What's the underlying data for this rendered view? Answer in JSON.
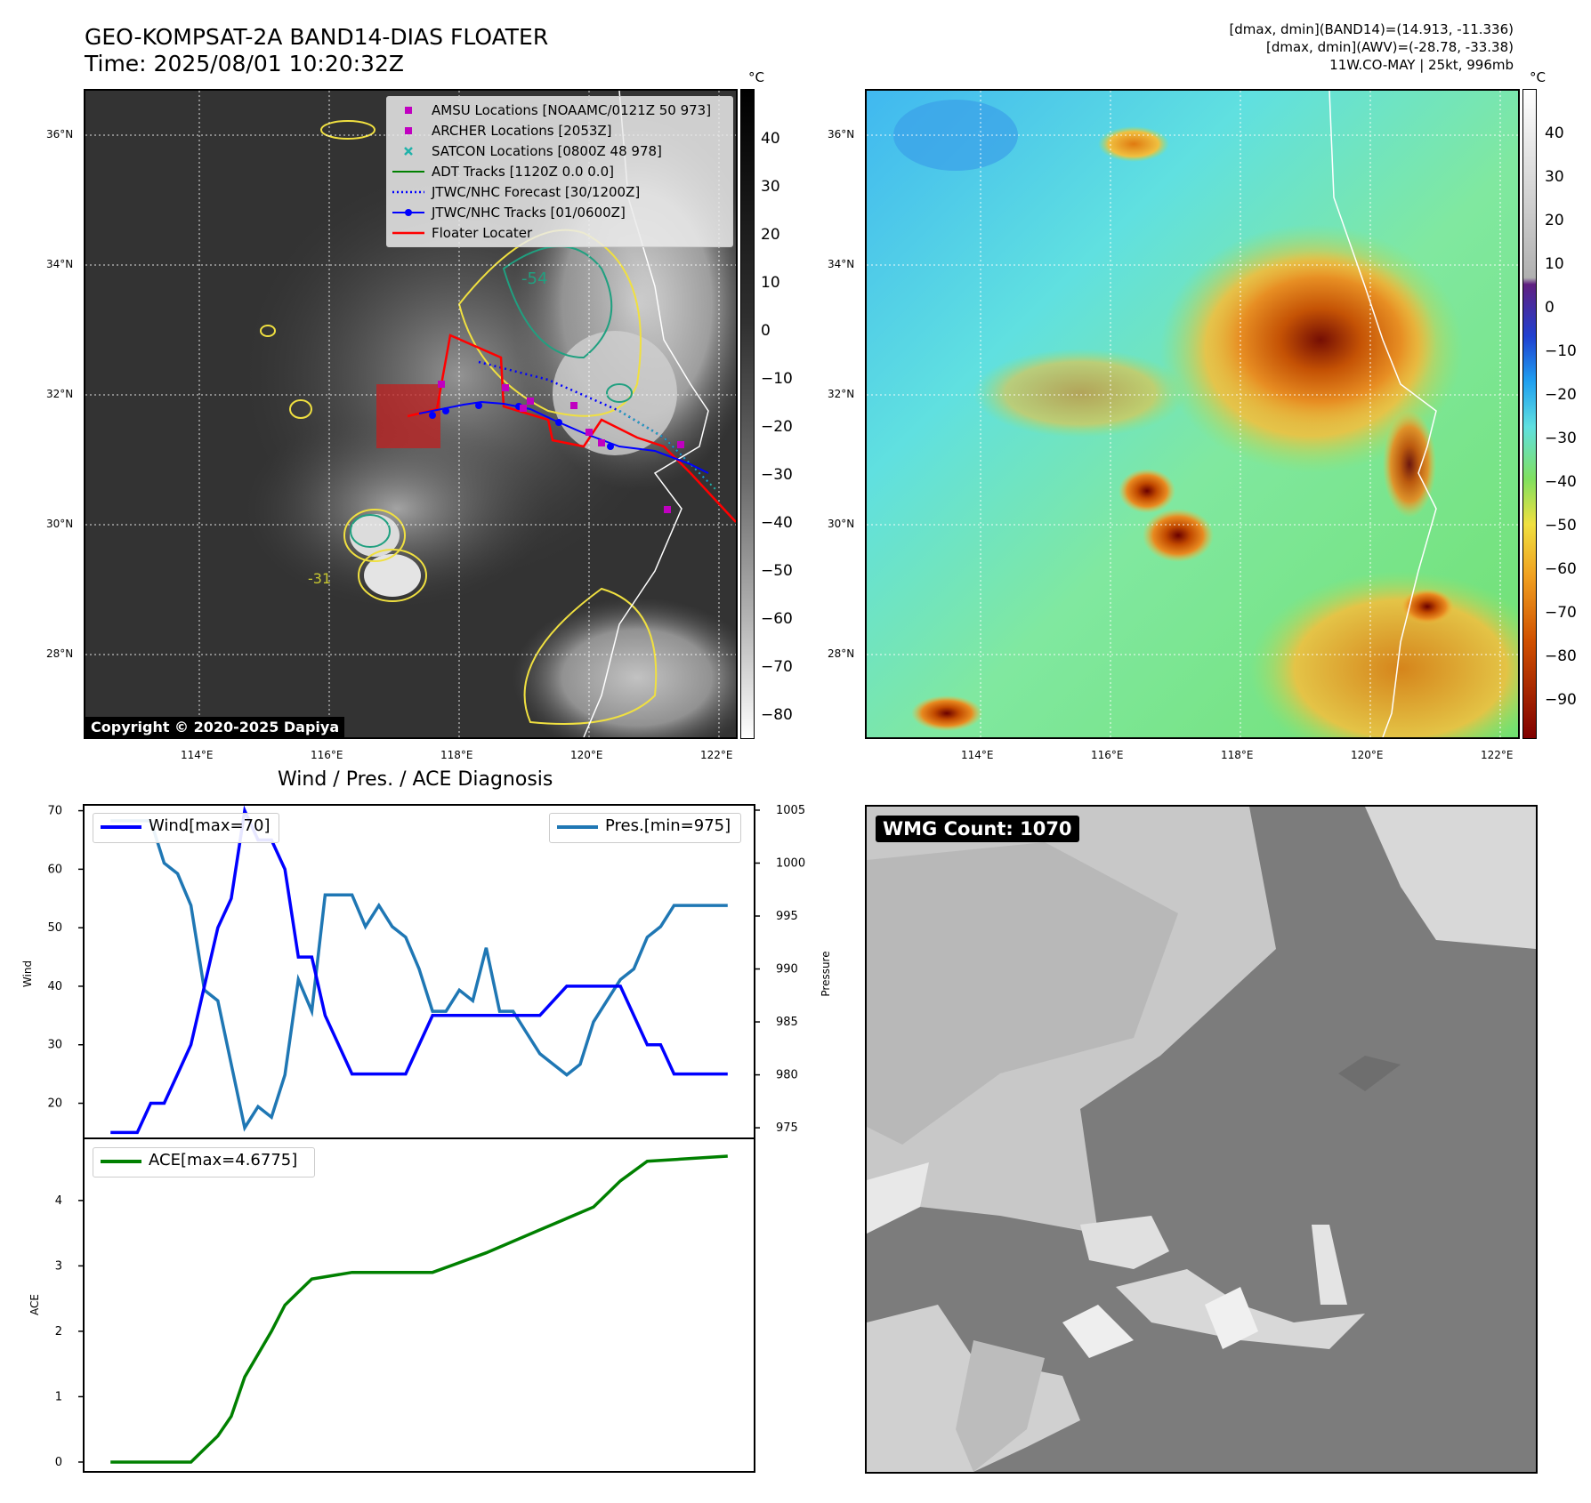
{
  "header": {
    "title_line1": "GEO-KOMPSAT-2A BAND14-DIAS FLOATER",
    "title_line2": "Time: 2025/08/01 10:20:32Z",
    "meta_line1": "[dmax, dmin](BAND14)=(14.913, -11.336)",
    "meta_line2": "[dmax, dmin](AWV)=(-28.78, -33.38)",
    "meta_line3": "11W.CO-MAY | 25kt, 996mb"
  },
  "map_left": {
    "lat_labels": [
      "36°N",
      "34°N",
      "32°N",
      "30°N",
      "28°N"
    ],
    "lon_labels": [
      "114°E",
      "116°E",
      "118°E",
      "120°E",
      "122°E"
    ],
    "colorbar_unit": "°C",
    "colorbar_ticks": [
      "40",
      "30",
      "20",
      "10",
      "0",
      "−10",
      "−20",
      "−30",
      "−40",
      "−50",
      "−60",
      "−70",
      "−80"
    ],
    "copyright": "Copyright © 2020-2025 Dapiya",
    "contour_labels": [
      "-54",
      "-31"
    ],
    "legend": [
      {
        "label": "AMSU Locations [NOAAMC/0121Z 50 973]",
        "color": "#c000c0",
        "icon": "square-marker"
      },
      {
        "label": "ARCHER Locations [2053Z]",
        "color": "#c000c0",
        "icon": "square-marker"
      },
      {
        "label": "SATCON Locations [0800Z 48 978]",
        "color": "#20b2aa",
        "icon": "x-marker"
      },
      {
        "label": "ADT Tracks [1120Z 0.0 0.0]",
        "color": "#008000",
        "icon": "solid-line"
      },
      {
        "label": "JTWC/NHC Forecast [30/1200Z]",
        "color": "#0000ff",
        "icon": "dotted-line"
      },
      {
        "label": "JTWC/NHC Tracks [01/0600Z]",
        "color": "#0000ff",
        "icon": "line-dot"
      },
      {
        "label": "Floater Locater",
        "color": "#ff0000",
        "icon": "solid-line"
      }
    ]
  },
  "map_right": {
    "lat_labels": [
      "36°N",
      "34°N",
      "32°N",
      "30°N",
      "28°N"
    ],
    "lon_labels": [
      "114°E",
      "116°E",
      "118°E",
      "120°E",
      "122°E"
    ],
    "colorbar_unit": "°C",
    "colorbar_ticks": [
      "40",
      "30",
      "20",
      "10",
      "0",
      "−10",
      "−20",
      "−30",
      "−40",
      "−50",
      "−60",
      "−70",
      "−80",
      "−90"
    ]
  },
  "diagnosis": {
    "title": "Wind / Pres. / ACE Diagnosis",
    "wind_ylabel": "Wind",
    "pres_ylabel": "Pressure",
    "ace_ylabel": "ACE",
    "wind_legend": "Wind[max=70]",
    "pres_legend": "Pres.[min=975]",
    "ace_legend": "ACE[max=4.6775]",
    "wind_color": "#0000ff",
    "pres_color": "#1f77b4",
    "ace_color": "#008000"
  },
  "chart_data": [
    {
      "type": "line",
      "title": "Wind / Pres. / ACE Diagnosis",
      "ylabel": "Wind",
      "ylim": [
        14,
        71
      ],
      "yticks": [
        20,
        30,
        40,
        50,
        60,
        70
      ],
      "x": [
        0,
        2,
        3,
        4,
        5,
        6,
        7,
        8,
        9,
        10,
        11,
        12,
        13,
        14,
        15,
        16,
        17,
        18,
        20,
        22,
        24,
        26,
        28,
        30,
        32,
        34,
        36,
        38,
        40,
        41,
        42,
        43,
        44,
        46
      ],
      "series": [
        {
          "name": "Wind[max=70]",
          "values": [
            15,
            15,
            20,
            20,
            25,
            30,
            40,
            50,
            55,
            70,
            65,
            65,
            60,
            45,
            45,
            35,
            30,
            25,
            25,
            25,
            35,
            35,
            35,
            35,
            35,
            40,
            40,
            40,
            30,
            30,
            25,
            25,
            25,
            25
          ]
        }
      ]
    },
    {
      "type": "line",
      "ylabel": "Pressure",
      "ylim": [
        974,
        1005.5
      ],
      "yticks": [
        975,
        980,
        985,
        990,
        995,
        1000,
        1005
      ],
      "x": [
        0,
        3,
        4,
        5,
        6,
        7,
        8,
        9,
        10,
        11,
        12,
        13,
        14,
        15,
        16,
        17,
        18,
        19,
        20,
        21,
        22,
        23,
        24,
        25,
        26,
        27,
        28,
        29,
        30,
        31,
        32,
        33,
        34,
        35,
        36,
        37,
        38,
        39,
        40,
        41,
        42,
        43,
        44,
        45,
        46
      ],
      "series": [
        {
          "name": "Pres.[min=975]",
          "values": [
            1004,
            1004,
            1000,
            999,
            996,
            988,
            987,
            981,
            975,
            977,
            976,
            980,
            989,
            986,
            997,
            997,
            997,
            994,
            996,
            994,
            993,
            990,
            986,
            986,
            988,
            987,
            992,
            986,
            986,
            984,
            982,
            981,
            980,
            981,
            985,
            987,
            989,
            990,
            993,
            994,
            996,
            996,
            996,
            996,
            996
          ]
        }
      ]
    },
    {
      "type": "line",
      "ylabel": "ACE",
      "ylim": [
        -0.15,
        4.95
      ],
      "yticks": [
        0,
        1,
        2,
        3,
        4
      ],
      "x": [
        0,
        6,
        7,
        8,
        9,
        10,
        12,
        13,
        14,
        15,
        18,
        19,
        22,
        24,
        28,
        32,
        36,
        38,
        40,
        46
      ],
      "series": [
        {
          "name": "ACE[max=4.6775]",
          "values": [
            0,
            0,
            0.2,
            0.4,
            0.7,
            1.3,
            2.0,
            2.4,
            2.6,
            2.8,
            2.9,
            2.9,
            2.9,
            2.9,
            3.2,
            3.55,
            3.9,
            4.3,
            4.6,
            4.6775
          ]
        }
      ]
    }
  ],
  "wmg": {
    "label": "WMG Count: 1070"
  }
}
